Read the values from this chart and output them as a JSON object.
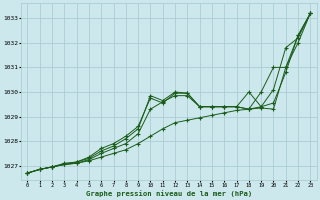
{
  "title": "Graphe pression niveau de la mer (hPa)",
  "bg_color": "#cce8ec",
  "grid_color": "#aacdd4",
  "line_color": "#1a5c1a",
  "xlim": [
    -0.5,
    23.5
  ],
  "ylim": [
    1026.4,
    1033.6
  ],
  "yticks": [
    1027,
    1028,
    1029,
    1030,
    1031,
    1032,
    1033
  ],
  "xticks": [
    0,
    1,
    2,
    3,
    4,
    5,
    6,
    7,
    8,
    9,
    10,
    11,
    12,
    13,
    14,
    15,
    16,
    17,
    18,
    19,
    20,
    21,
    22,
    23
  ],
  "lines": [
    [
      1026.7,
      1026.85,
      1026.95,
      1027.05,
      1027.1,
      1027.2,
      1027.35,
      1027.5,
      1027.65,
      1027.9,
      1028.2,
      1028.5,
      1028.75,
      1028.85,
      1028.95,
      1029.05,
      1029.15,
      1029.25,
      1029.3,
      1029.4,
      1029.55,
      1030.8,
      1032.3,
      1033.2
    ],
    [
      1026.7,
      1026.85,
      1026.95,
      1027.05,
      1027.1,
      1027.25,
      1027.5,
      1027.7,
      1027.9,
      1028.3,
      1029.3,
      1029.6,
      1029.85,
      1029.85,
      1029.4,
      1029.4,
      1029.4,
      1029.4,
      1029.3,
      1029.35,
      1029.3,
      1031.0,
      1032.0,
      1033.2
    ],
    [
      1026.7,
      1026.85,
      1026.95,
      1027.1,
      1027.15,
      1027.35,
      1027.7,
      1027.9,
      1028.2,
      1028.6,
      1029.75,
      1029.55,
      1029.95,
      1029.95,
      1029.4,
      1029.4,
      1029.4,
      1029.4,
      1030.0,
      1029.4,
      1030.1,
      1031.8,
      1032.2,
      1033.2
    ],
    [
      1026.7,
      1026.85,
      1026.95,
      1027.05,
      1027.15,
      1027.3,
      1027.6,
      1027.8,
      1028.1,
      1028.5,
      1029.85,
      1029.65,
      1030.0,
      1029.95,
      1029.4,
      1029.4,
      1029.4,
      1029.4,
      1029.3,
      1030.0,
      1031.0,
      1031.0,
      1032.3,
      1033.2
    ]
  ]
}
